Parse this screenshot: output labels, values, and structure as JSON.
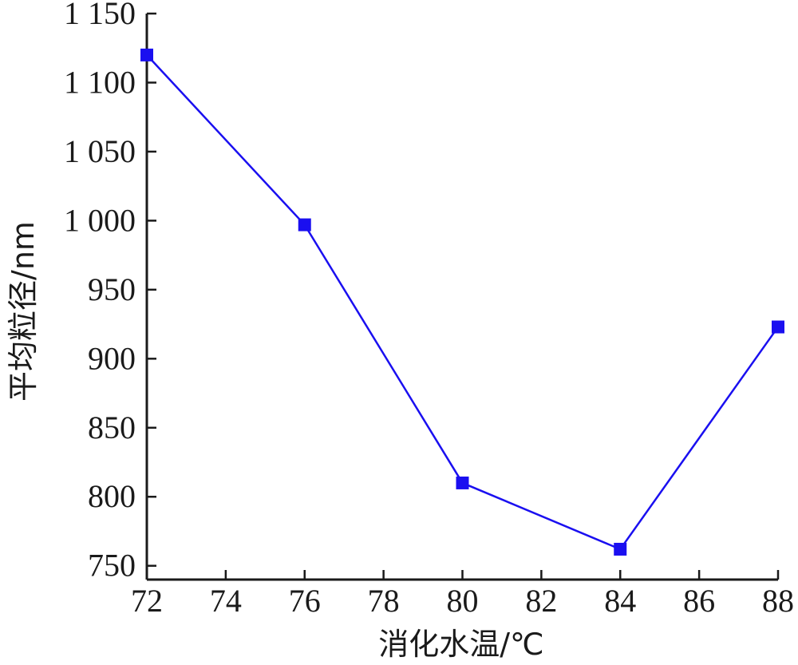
{
  "chart_data": {
    "type": "line",
    "title": "",
    "xlabel": "消化水温/℃",
    "ylabel": "平均粒径/nm",
    "x": [
      72,
      76,
      80,
      84,
      88
    ],
    "series": [
      {
        "values": [
          1120,
          997,
          810,
          762,
          923
        ],
        "color": "#1a0ff0",
        "marker": "square"
      }
    ],
    "xlim": [
      72,
      88
    ],
    "ylim": [
      740,
      1150
    ],
    "xticks": [
      72,
      74,
      76,
      78,
      80,
      82,
      84,
      86,
      88
    ],
    "xtick_labels": [
      "72",
      "74",
      "76",
      "78",
      "80",
      "82",
      "84",
      "86",
      "88"
    ],
    "yticks": [
      750,
      800,
      850,
      900,
      950,
      1000,
      1050,
      1100,
      1150
    ],
    "ytick_labels": [
      "750",
      "800",
      "850",
      "900",
      "950",
      "1 000",
      "1 050",
      "1 100",
      "1 150"
    ],
    "grid": false,
    "axis_color": "#1a1a1a"
  }
}
